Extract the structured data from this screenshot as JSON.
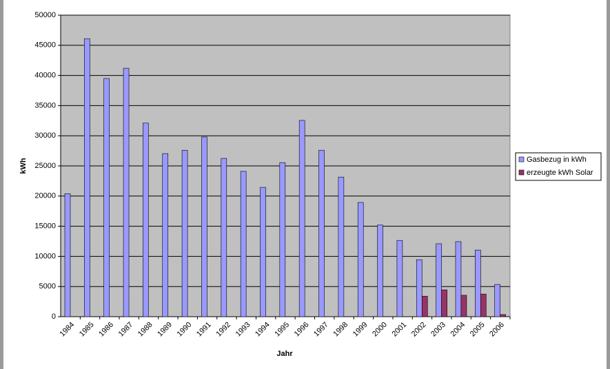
{
  "chart_data": {
    "type": "bar",
    "x_label": "Jahr",
    "y_label": "kWh",
    "categories": [
      "1984",
      "1985",
      "1986",
      "1987",
      "1988",
      "1989",
      "1990",
      "1991",
      "1992",
      "1993",
      "1994",
      "1995",
      "1996",
      "1997",
      "1998",
      "1999",
      "2000",
      "2001",
      "2002",
      "2003",
      "2004",
      "2005",
      "2006"
    ],
    "series": [
      {
        "name": "Gasbezug in kWh",
        "color": "#9999ff",
        "values": [
          20400,
          46100,
          39500,
          41200,
          32100,
          27050,
          27600,
          29800,
          26250,
          24100,
          21450,
          25550,
          32550,
          27600,
          23150,
          18950,
          15200,
          12650,
          9450,
          12100,
          12450,
          11050,
          5350
        ]
      },
      {
        "name": "erzeugte kWh Solar",
        "color": "#993366",
        "values": [
          null,
          null,
          null,
          null,
          null,
          null,
          null,
          null,
          null,
          null,
          null,
          null,
          null,
          null,
          null,
          null,
          null,
          null,
          3400,
          4450,
          3550,
          3750,
          350
        ]
      }
    ],
    "ylim": [
      0,
      50000
    ],
    "yticks": [
      0,
      5000,
      10000,
      15000,
      20000,
      25000,
      30000,
      35000,
      40000,
      45000,
      50000
    ],
    "grid": true,
    "legend": "right",
    "plot_background": "#c0c0c0"
  }
}
